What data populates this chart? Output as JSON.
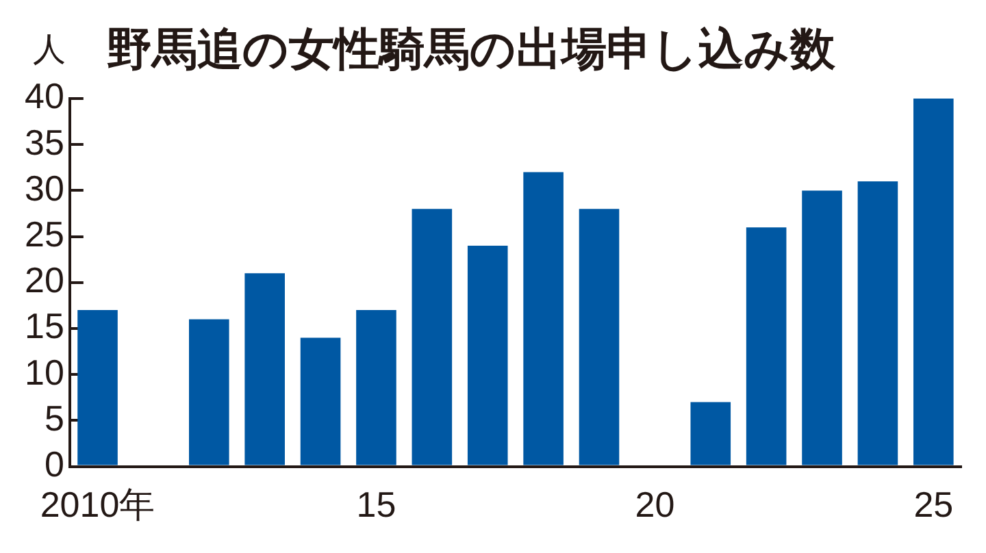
{
  "chart_data": {
    "type": "bar",
    "title": "野馬追の女性騎馬の出場申し込み数",
    "ylabel": "人",
    "categories": [
      "2010年",
      null,
      null,
      null,
      null,
      "15",
      null,
      null,
      null,
      null,
      "20",
      null,
      null,
      null,
      null,
      "25"
    ],
    "values": [
      17,
      null,
      16,
      21,
      14,
      17,
      28,
      24,
      32,
      28,
      null,
      7,
      26,
      30,
      31,
      40
    ],
    "color": "#0058a3",
    "ylim": [
      0,
      40
    ],
    "yticks": [
      0,
      5,
      10,
      15,
      20,
      25,
      30,
      35,
      40
    ],
    "grid": false
  }
}
